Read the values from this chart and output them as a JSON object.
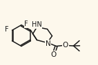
{
  "bg_color": "#fdf8ec",
  "bond_color": "#1a1a1a",
  "atom_color": "#1a1a1a",
  "font_size": 6.5,
  "line_width": 1.1,
  "figsize": [
    1.42,
    0.95
  ],
  "dpi": 100,
  "xlim": [
    0,
    14.2
  ],
  "ylim": [
    0,
    9.5
  ]
}
